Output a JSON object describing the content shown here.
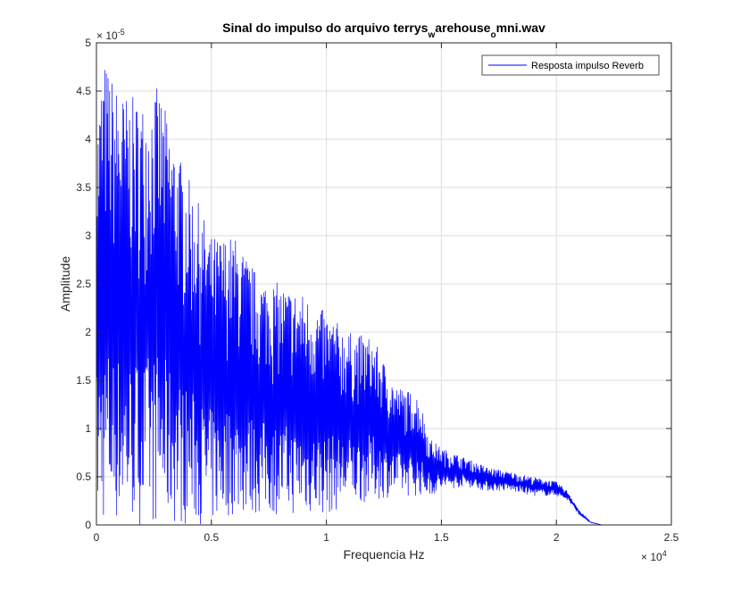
{
  "chart_data": {
    "type": "line",
    "title": {
      "main": "Sinal do impulso do arquivo terrys",
      "sub1": "w",
      "mid": "arehouse",
      "sub2": "o",
      "end": "mni.wav"
    },
    "xlabel": "Frequencia Hz",
    "ylabel": "Amplitude",
    "xlim": [
      0,
      25000
    ],
    "ylim": [
      0,
      5e-05
    ],
    "x_ticks": [
      0,
      5000,
      10000,
      15000,
      20000,
      25000
    ],
    "x_tick_labels": [
      "0",
      "0.5",
      "1",
      "1.5",
      "2",
      "2.5"
    ],
    "y_ticks": [
      0,
      5e-06,
      1e-05,
      1.5e-05,
      2e-05,
      2.5e-05,
      3e-05,
      3.5e-05,
      4e-05,
      4.5e-05,
      5e-05
    ],
    "y_tick_labels": [
      "0",
      "0.5",
      "1",
      "1.5",
      "2",
      "2.5",
      "3",
      "3.5",
      "4",
      "4.5",
      "5"
    ],
    "x_exponent": {
      "base": "× 10",
      "power": "4"
    },
    "y_exponent": {
      "base": "× 10",
      "power": "-5"
    },
    "grid": true,
    "legend_position": "top-right",
    "series": [
      {
        "name": "Resposta impulso Reverb",
        "color": "#0000ff",
        "envelope": {
          "x": [
            0,
            300,
            1000,
            2000,
            2700,
            3500,
            5000,
            6000,
            7000,
            8000,
            9000,
            10000,
            11000,
            12000,
            13000,
            14000,
            14500,
            15000,
            16000,
            17000,
            18000,
            19000,
            20000,
            20500,
            21000,
            21500,
            22000,
            25000
          ],
          "upper": [
            4.1e-05,
            4.85e-05,
            4.5e-05,
            4.4e-05,
            4.55e-05,
            3.9e-05,
            3e-05,
            3e-05,
            2.6e-05,
            2.5e-05,
            2.4e-05,
            2.2e-05,
            2e-05,
            1.95e-05,
            1.45e-05,
            1.35e-05,
            9e-06,
            8e-06,
            7e-06,
            6e-06,
            5.5e-06,
            5e-06,
            4.5e-06,
            3.5e-06,
            1.5e-06,
            3e-07,
            0,
            0
          ],
          "lower": [
            0,
            0,
            0,
            0,
            0,
            0,
            0,
            1e-06,
            1e-06,
            1e-06,
            1e-06,
            1e-06,
            2e-06,
            2.5e-06,
            3e-06,
            3e-06,
            3e-06,
            3.5e-06,
            4e-06,
            3.5e-06,
            3.5e-06,
            3e-06,
            3e-06,
            2.5e-06,
            1e-06,
            2e-07,
            0,
            0
          ]
        }
      }
    ]
  }
}
